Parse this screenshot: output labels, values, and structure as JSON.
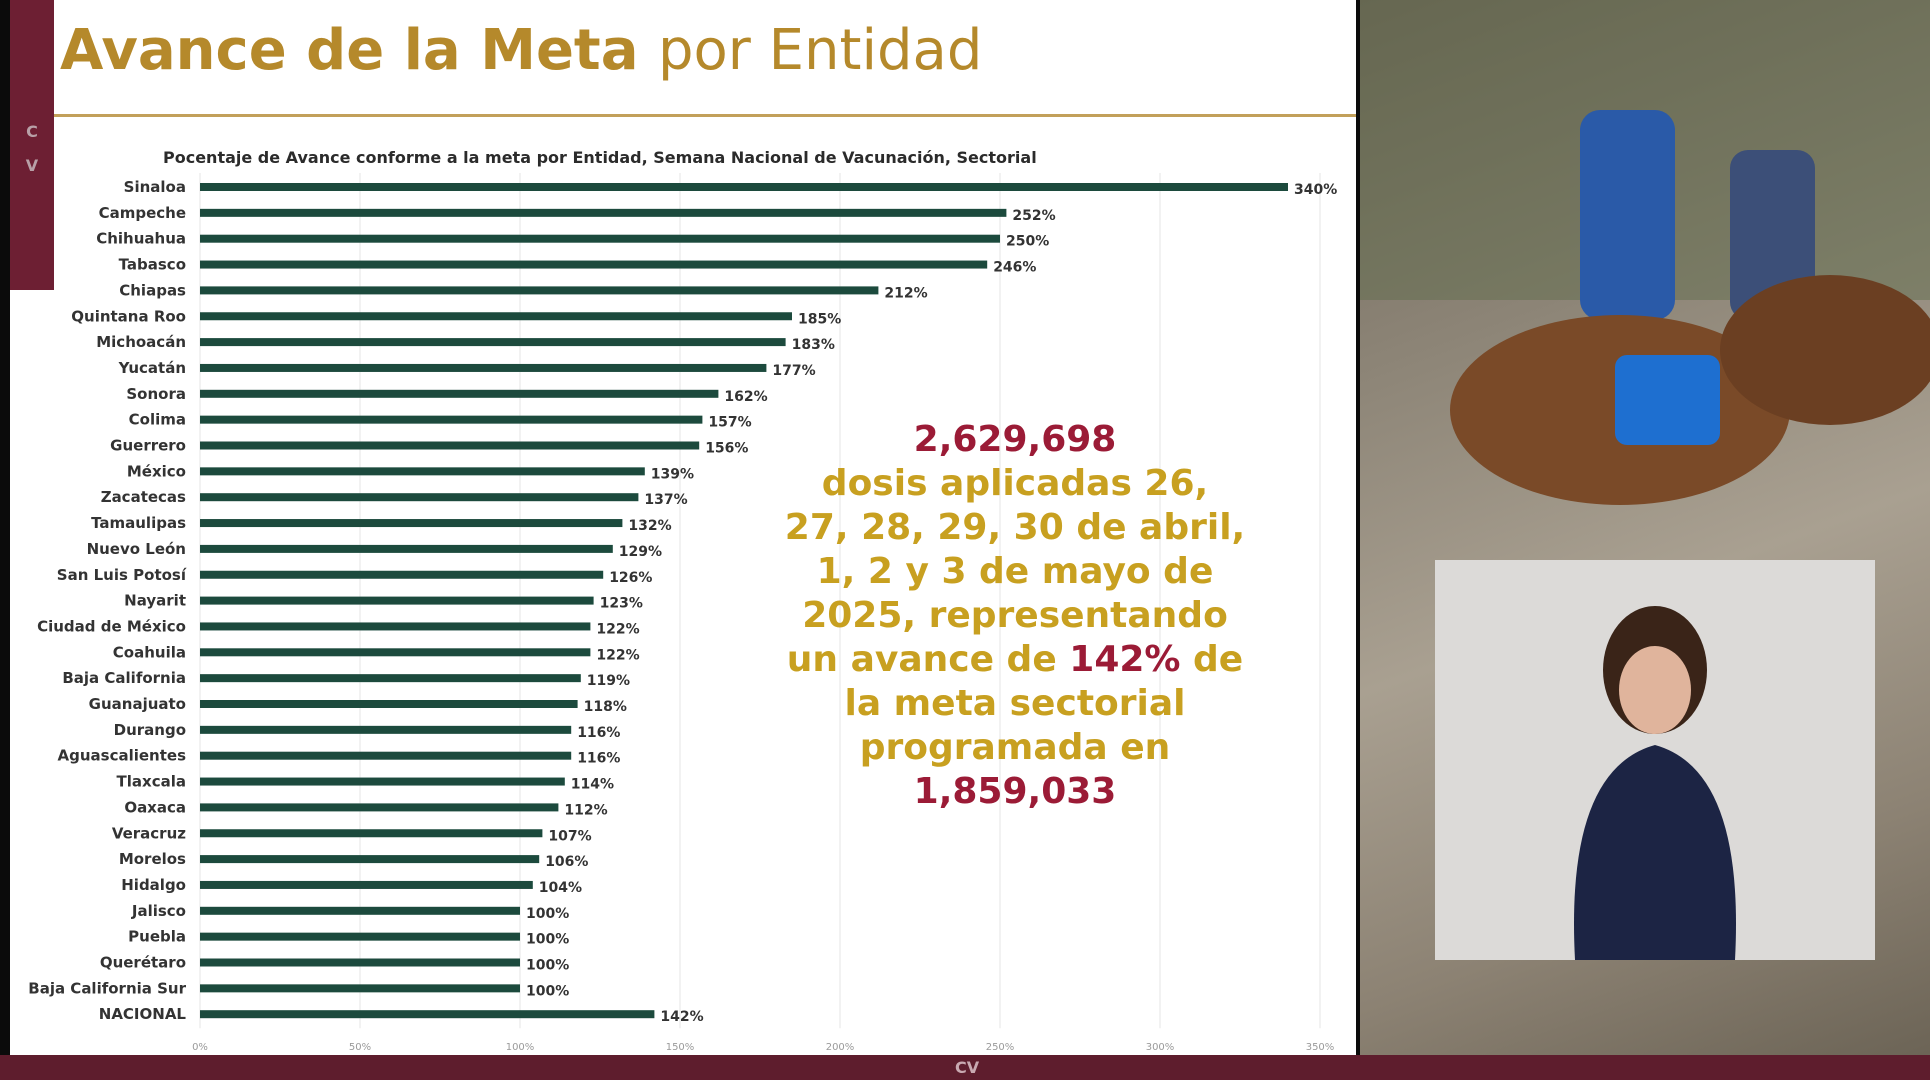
{
  "slide": {
    "title_bold": "Avance de la Meta",
    "title_light": "por Entidad",
    "accent_letters": [
      "C",
      "V"
    ],
    "bottom_bar_text": "CV"
  },
  "chart_data": {
    "type": "bar",
    "orientation": "horizontal",
    "title": "Pocentaje de Avance conforme a la meta por Entidad, Semana Nacional de Vacunación, Sectorial",
    "categories": [
      "Sinaloa",
      "Campeche",
      "Chihuahua",
      "Tabasco",
      "Chiapas",
      "Quintana Roo",
      "Michoacán",
      "Yucatán",
      "Sonora",
      "Colima",
      "Guerrero",
      "México",
      "Zacatecas",
      "Tamaulipas",
      "Nuevo León",
      "San Luis Potosí",
      "Nayarit",
      "Ciudad de México",
      "Coahuila",
      "Baja California",
      "Guanajuato",
      "Durango",
      "Aguascalientes",
      "Tlaxcala",
      "Oaxaca",
      "Veracruz",
      "Morelos",
      "Hidalgo",
      "Jalisco",
      "Puebla",
      "Querétaro",
      "Baja California Sur",
      "NACIONAL"
    ],
    "values": [
      340,
      252,
      250,
      246,
      212,
      185,
      183,
      177,
      162,
      157,
      156,
      139,
      137,
      132,
      129,
      126,
      123,
      122,
      122,
      119,
      118,
      116,
      116,
      114,
      112,
      107,
      106,
      104,
      100,
      100,
      100,
      100,
      142
    ],
    "value_labels": [
      "340%",
      "252%",
      "250%",
      "246%",
      "212%",
      "185%",
      "183%",
      "177%",
      "162%",
      "157%",
      "156%",
      "139%",
      "137%",
      "132%",
      "129%",
      "126%",
      "123%",
      "122%",
      "122%",
      "119%",
      "118%",
      "116%",
      "116%",
      "114%",
      "112%",
      "107%",
      "106%",
      "104%",
      "100%",
      "100%",
      "100%",
      "100%",
      "142%"
    ],
    "xlim": [
      0,
      350
    ],
    "xticks": [
      0,
      50,
      100,
      150,
      200,
      250,
      300,
      350
    ],
    "xtick_labels": [
      "0%",
      "50%",
      "100%",
      "150%",
      "200%",
      "250%",
      "300%",
      "350%"
    ],
    "grid": true,
    "bar_color": "#1c4a3d"
  },
  "callout": {
    "line1": "2,629,698",
    "line2": "dosis aplicadas 26,",
    "line3": "27, 28, 29, 30 de abril,",
    "line4": "1, 2 y 3 de mayo de",
    "line5": "2025, representando",
    "line6_pre": "un avance de ",
    "line6_pct": "142%",
    "line6_post": " de",
    "line7": "la meta sectorial",
    "line8": "programada en",
    "line9": "1,859,033"
  }
}
